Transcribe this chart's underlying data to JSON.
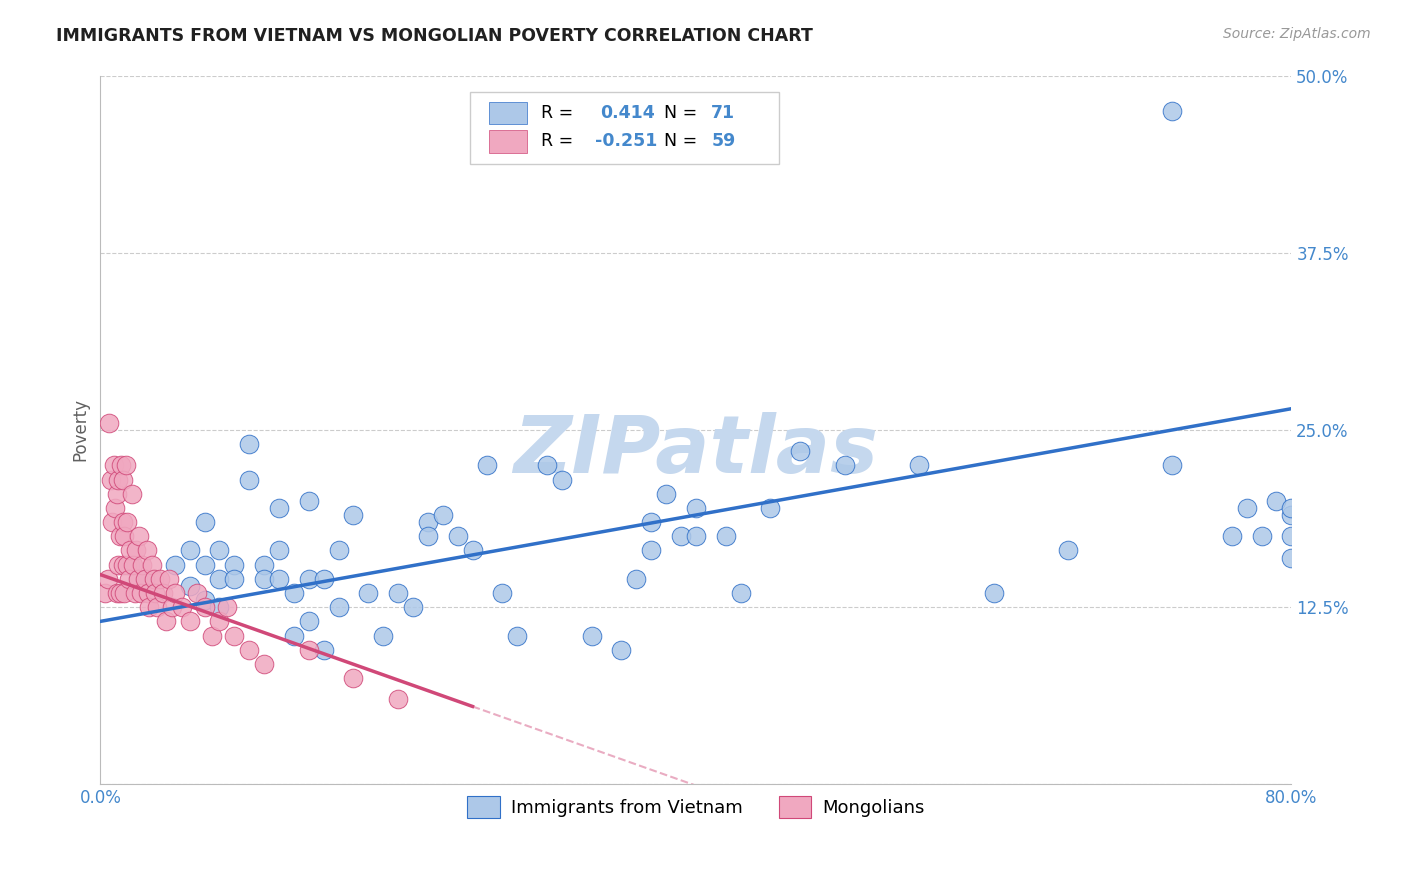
{
  "title": "IMMIGRANTS FROM VIETNAM VS MONGOLIAN POVERTY CORRELATION CHART",
  "source": "Source: ZipAtlas.com",
  "ylabel": "Poverty",
  "xlim": [
    0.0,
    0.8
  ],
  "ylim": [
    0.0,
    0.5
  ],
  "xticks": [
    0.0,
    0.2,
    0.4,
    0.6,
    0.8
  ],
  "xticklabels": [
    "0.0%",
    "",
    "",
    "",
    "80.0%"
  ],
  "yticks": [
    0.0,
    0.125,
    0.25,
    0.375,
    0.5
  ],
  "yticklabels": [
    "",
    "12.5%",
    "25.0%",
    "37.5%",
    "50.0%"
  ],
  "blue_R": 0.414,
  "blue_N": 71,
  "pink_R": -0.251,
  "pink_N": 59,
  "blue_color": "#adc8e8",
  "pink_color": "#f0a8c0",
  "blue_line_color": "#3070c8",
  "pink_line_color": "#d04878",
  "blue_scatter_x": [
    0.02,
    0.03,
    0.05,
    0.06,
    0.06,
    0.07,
    0.07,
    0.07,
    0.08,
    0.08,
    0.08,
    0.09,
    0.09,
    0.1,
    0.1,
    0.11,
    0.11,
    0.12,
    0.12,
    0.12,
    0.13,
    0.13,
    0.14,
    0.14,
    0.14,
    0.15,
    0.15,
    0.16,
    0.16,
    0.17,
    0.18,
    0.19,
    0.2,
    0.21,
    0.22,
    0.22,
    0.23,
    0.24,
    0.25,
    0.26,
    0.27,
    0.28,
    0.3,
    0.31,
    0.33,
    0.35,
    0.36,
    0.37,
    0.37,
    0.38,
    0.39,
    0.4,
    0.4,
    0.42,
    0.43,
    0.45,
    0.47,
    0.5,
    0.55,
    0.6,
    0.65,
    0.72,
    0.72,
    0.76,
    0.77,
    0.78,
    0.79,
    0.8,
    0.8,
    0.8,
    0.8
  ],
  "blue_scatter_y": [
    0.155,
    0.145,
    0.155,
    0.165,
    0.14,
    0.13,
    0.155,
    0.185,
    0.145,
    0.165,
    0.125,
    0.155,
    0.145,
    0.24,
    0.215,
    0.155,
    0.145,
    0.165,
    0.145,
    0.195,
    0.135,
    0.105,
    0.2,
    0.145,
    0.115,
    0.145,
    0.095,
    0.165,
    0.125,
    0.19,
    0.135,
    0.105,
    0.135,
    0.125,
    0.185,
    0.175,
    0.19,
    0.175,
    0.165,
    0.225,
    0.135,
    0.105,
    0.225,
    0.215,
    0.105,
    0.095,
    0.145,
    0.185,
    0.165,
    0.205,
    0.175,
    0.195,
    0.175,
    0.175,
    0.135,
    0.195,
    0.235,
    0.225,
    0.225,
    0.135,
    0.165,
    0.225,
    0.475,
    0.175,
    0.195,
    0.175,
    0.2,
    0.19,
    0.16,
    0.175,
    0.195
  ],
  "pink_scatter_x": [
    0.003,
    0.005,
    0.006,
    0.007,
    0.008,
    0.009,
    0.01,
    0.011,
    0.011,
    0.012,
    0.012,
    0.013,
    0.013,
    0.014,
    0.015,
    0.015,
    0.015,
    0.016,
    0.016,
    0.017,
    0.018,
    0.018,
    0.019,
    0.02,
    0.021,
    0.022,
    0.023,
    0.024,
    0.025,
    0.026,
    0.027,
    0.028,
    0.03,
    0.031,
    0.032,
    0.033,
    0.035,
    0.036,
    0.037,
    0.038,
    0.04,
    0.042,
    0.044,
    0.046,
    0.048,
    0.05,
    0.055,
    0.06,
    0.065,
    0.07,
    0.075,
    0.08,
    0.085,
    0.09,
    0.1,
    0.11,
    0.14,
    0.17,
    0.2
  ],
  "pink_scatter_y": [
    0.135,
    0.145,
    0.255,
    0.215,
    0.185,
    0.225,
    0.195,
    0.135,
    0.205,
    0.155,
    0.215,
    0.135,
    0.175,
    0.225,
    0.155,
    0.185,
    0.215,
    0.135,
    0.175,
    0.225,
    0.155,
    0.185,
    0.145,
    0.165,
    0.205,
    0.155,
    0.135,
    0.165,
    0.145,
    0.175,
    0.135,
    0.155,
    0.145,
    0.165,
    0.135,
    0.125,
    0.155,
    0.145,
    0.135,
    0.125,
    0.145,
    0.135,
    0.115,
    0.145,
    0.125,
    0.135,
    0.125,
    0.115,
    0.135,
    0.125,
    0.105,
    0.115,
    0.125,
    0.105,
    0.095,
    0.085,
    0.095,
    0.075,
    0.06
  ],
  "blue_line_x0": 0.0,
  "blue_line_x1": 0.8,
  "blue_line_y0": 0.115,
  "blue_line_y1": 0.265,
  "pink_line_x0": 0.0,
  "pink_line_x1": 0.25,
  "pink_line_y0": 0.148,
  "pink_line_y1": 0.055,
  "watermark_text": "ZIPatlas",
  "watermark_color": "#c5d8ee",
  "background_color": "#ffffff",
  "grid_color": "#cccccc",
  "title_color": "#202020",
  "axis_label_color": "#606060",
  "tick_label_color": "#4488cc",
  "legend_value_color": "#4488cc"
}
